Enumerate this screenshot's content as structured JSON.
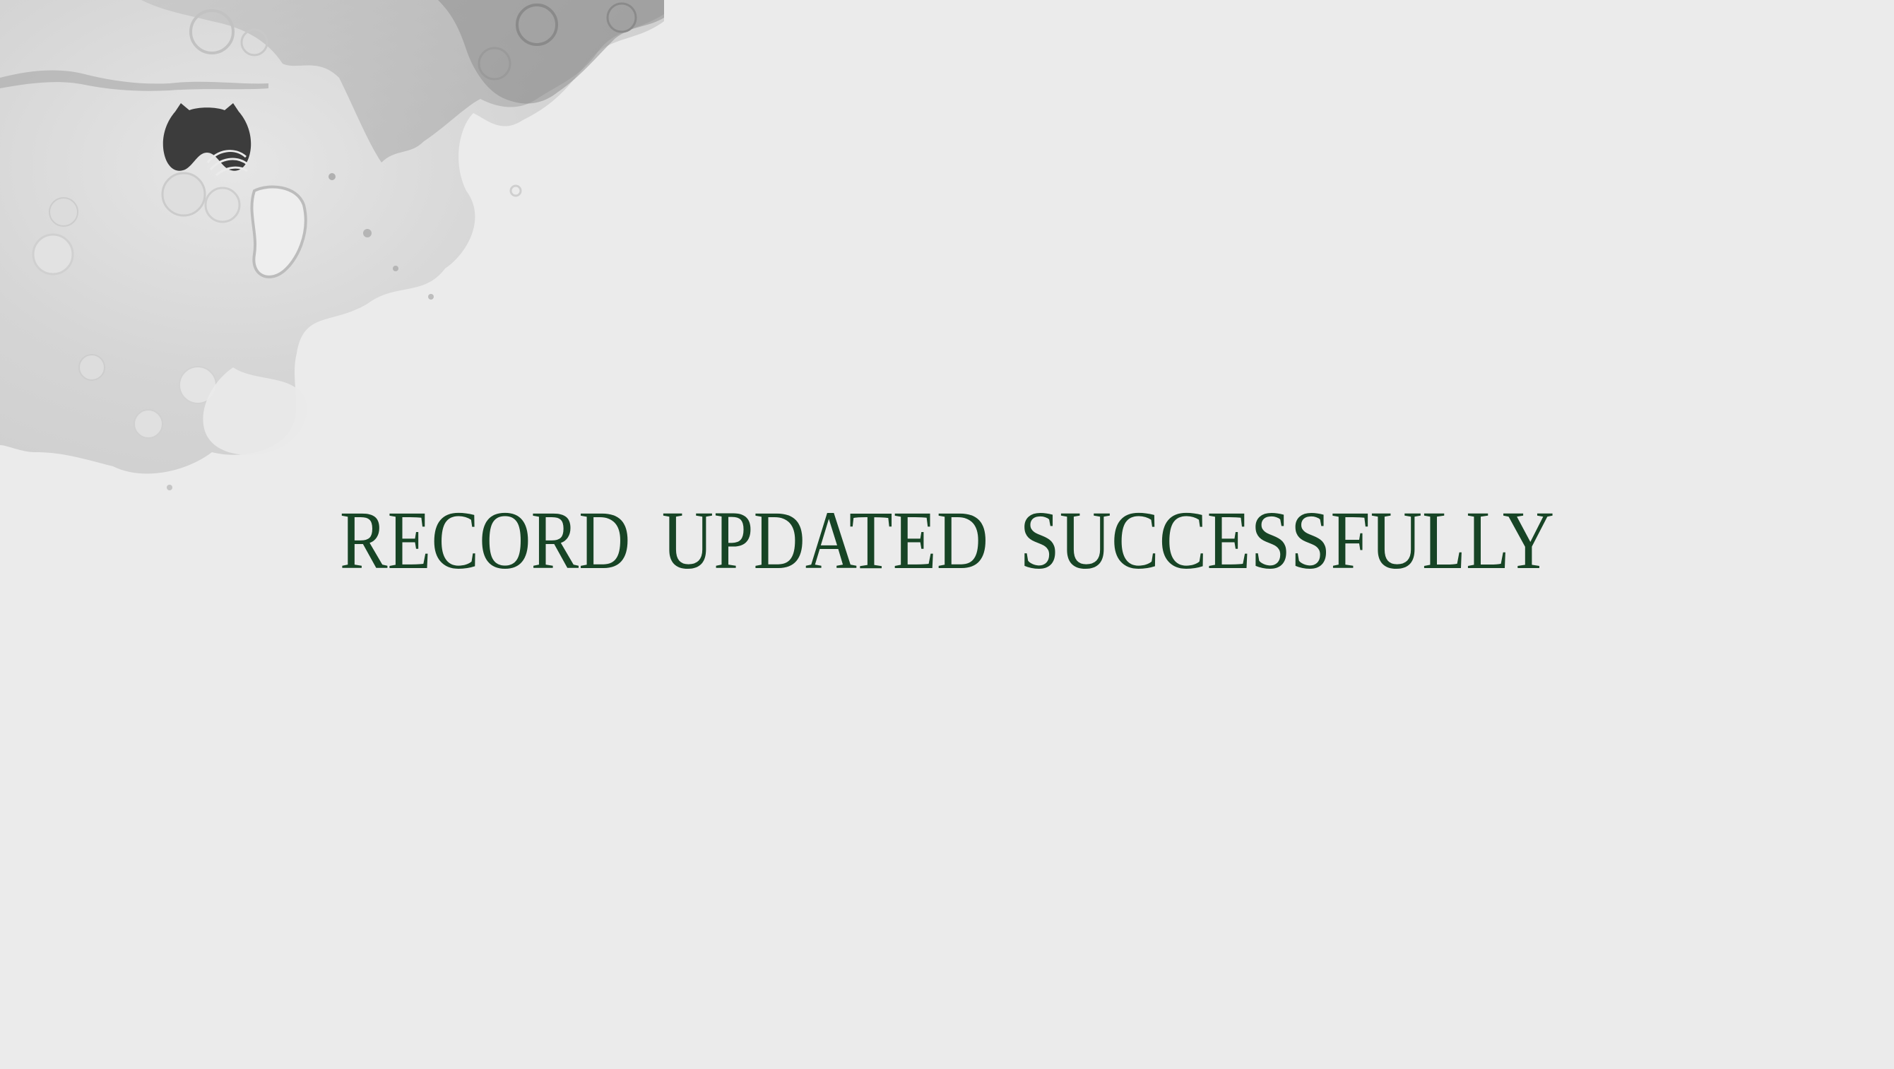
{
  "colors": {
    "background": "#ebebeb",
    "message_text": "#174425",
    "logo": "#3c3c3c"
  },
  "decoration": {
    "ink_wash": "grey-watercolor-ink-wash",
    "logo_icon": "cat-ears-wave-logo-icon"
  },
  "message": {
    "text": "RECORD UPDATED SUCCESSFULLY"
  }
}
